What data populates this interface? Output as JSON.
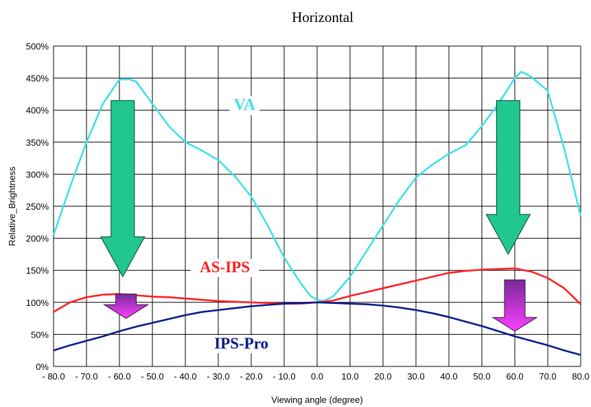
{
  "chart_data": {
    "type": "line",
    "title": "Horizontal",
    "xlabel": "Viewing angle (degree)",
    "ylabel": "Relative_Brightness",
    "xlim": [
      -80,
      80
    ],
    "ylim": [
      0,
      500
    ],
    "grid": true,
    "x_ticks": [
      "- 80.0",
      "- 70.0",
      "- 60.0",
      "- 50.0",
      "- 40.0",
      "- 30.0",
      "- 20.0",
      "- 10.0",
      "0.0",
      "10.0",
      "20.0",
      "30.0",
      "40.0",
      "50.0",
      "60.0",
      "70.0",
      "80.0"
    ],
    "y_ticks": [
      "0%",
      "50%",
      "100%",
      "150%",
      "200%",
      "250%",
      "300%",
      "350%",
      "400%",
      "450%",
      "500%"
    ],
    "series": [
      {
        "name": "VA",
        "color": "#40e0e8",
        "x": [
          -80,
          -75,
          -70,
          -65,
          -60,
          -57,
          -55,
          -50,
          -45,
          -40,
          -35,
          -30,
          -25,
          -20,
          -15,
          -10,
          -5,
          -2,
          0,
          2,
          5,
          10,
          15,
          20,
          25,
          30,
          35,
          40,
          45,
          50,
          55,
          60,
          62,
          65,
          70,
          75,
          80
        ],
        "y": [
          205,
          280,
          350,
          410,
          448,
          448,
          445,
          410,
          375,
          350,
          337,
          322,
          297,
          265,
          220,
          170,
          130,
          110,
          104,
          102,
          110,
          140,
          180,
          220,
          260,
          295,
          315,
          332,
          345,
          375,
          410,
          450,
          460,
          452,
          430,
          340,
          235
        ]
      },
      {
        "name": "AS-IPS",
        "color": "#ff2020",
        "x": [
          -80,
          -75,
          -70,
          -65,
          -60,
          -55,
          -50,
          -45,
          -40,
          -35,
          -30,
          -25,
          -20,
          -15,
          -10,
          -5,
          0,
          5,
          10,
          15,
          20,
          25,
          30,
          35,
          40,
          45,
          50,
          55,
          60,
          65,
          70,
          75,
          80
        ],
        "y": [
          85,
          100,
          108,
          112,
          113,
          111,
          109,
          108,
          106,
          104,
          102,
          101,
          100,
          99,
          98,
          98,
          100,
          103,
          110,
          116,
          122,
          128,
          134,
          140,
          146,
          149,
          151,
          152,
          153,
          148,
          138,
          122,
          97
        ],
        "annotation": "AS-IPS"
      },
      {
        "name": "IPS-Pro",
        "color": "#0a1a8a",
        "x": [
          -80,
          -75,
          -70,
          -65,
          -60,
          -55,
          -50,
          -45,
          -40,
          -35,
          -30,
          -25,
          -20,
          -15,
          -10,
          -5,
          0,
          5,
          10,
          15,
          20,
          25,
          30,
          35,
          40,
          45,
          50,
          55,
          60,
          65,
          70,
          75,
          80
        ],
        "y": [
          25,
          33,
          40,
          47,
          55,
          62,
          68,
          74,
          80,
          85,
          88,
          91,
          94,
          96,
          98,
          99,
          100,
          99,
          98,
          97,
          95,
          92,
          88,
          83,
          77,
          70,
          63,
          55,
          47,
          40,
          33,
          25,
          18
        ],
        "annotation": "IPS-Pro"
      }
    ],
    "annotations": [
      {
        "text": "VA",
        "x": -22,
        "y": 400,
        "color": "#40e0e8"
      },
      {
        "text": "AS-IPS",
        "x": -28,
        "y": 147,
        "color": "#ff2020"
      },
      {
        "text": "IPS-Pro",
        "x": -23,
        "y": 28,
        "color": "#0a1a8a"
      }
    ],
    "arrows": [
      {
        "type": "large",
        "color": "#20c890",
        "x": -59,
        "y_from": 415,
        "y_to": 140
      },
      {
        "type": "large",
        "color": "#20c890",
        "x": 58,
        "y_from": 415,
        "y_to": 175
      },
      {
        "type": "small",
        "color": "#c040c0",
        "x": -58,
        "y_from": 113,
        "y_to": 75
      },
      {
        "type": "small",
        "color": "#c040c0",
        "x": 60,
        "y_from": 135,
        "y_to": 55
      }
    ]
  }
}
